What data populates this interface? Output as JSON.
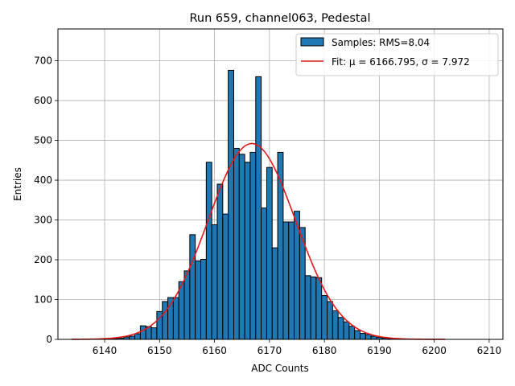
{
  "chart_data": {
    "type": "bar",
    "title": "Run 659, channel063, Pedestal",
    "xlabel": "ADC Counts",
    "ylabel": "Entries",
    "xlim": [
      6131.5,
      6212.5
    ],
    "ylim": [
      0,
      780
    ],
    "xticks": [
      6140,
      6150,
      6160,
      6170,
      6180,
      6190,
      6200,
      6210
    ],
    "yticks": [
      0,
      100,
      200,
      300,
      400,
      500,
      600,
      700
    ],
    "grid": true,
    "legend_position": "top-right",
    "colors": {
      "bar": "#1f77b4",
      "bar_edge": "#000000",
      "fit": "#e41a1c"
    },
    "bin_width": 1,
    "series": [
      {
        "name": "Samples: RMS=8.04",
        "type": "histogram",
        "x": [
          6141,
          6142,
          6143,
          6144,
          6145,
          6146,
          6147,
          6148,
          6149,
          6150,
          6151,
          6152,
          6153,
          6154,
          6155,
          6156,
          6157,
          6158,
          6159,
          6160,
          6161,
          6162,
          6163,
          6164,
          6165,
          6166,
          6167,
          6168,
          6169,
          6170,
          6171,
          6172,
          6173,
          6174,
          6175,
          6176,
          6177,
          6178,
          6179,
          6180,
          6181,
          6182,
          6183,
          6184,
          6185,
          6186,
          6187,
          6188,
          6189,
          6190,
          6191,
          6192,
          6196
        ],
        "values": [
          1,
          2,
          3,
          6,
          8,
          14,
          34,
          32,
          29,
          70,
          95,
          105,
          105,
          145,
          172,
          263,
          197,
          201,
          445,
          288,
          390,
          315,
          676,
          480,
          465,
          445,
          470,
          660,
          330,
          432,
          230,
          470,
          295,
          295,
          322,
          281,
          160,
          157,
          155,
          110,
          95,
          72,
          55,
          44,
          33,
          22,
          15,
          12,
          8,
          5,
          3,
          2,
          1
        ]
      },
      {
        "name": "Fit: $\\mu$ = 6166.795, $\\sigma$ = 7.972",
        "legend_label": "Fit: μ = 6166.795, σ = 7.972",
        "type": "line",
        "mu": 6166.795,
        "sigma": 7.972,
        "amplitude": 492,
        "x_range": [
          6134,
          6202
        ]
      }
    ]
  }
}
